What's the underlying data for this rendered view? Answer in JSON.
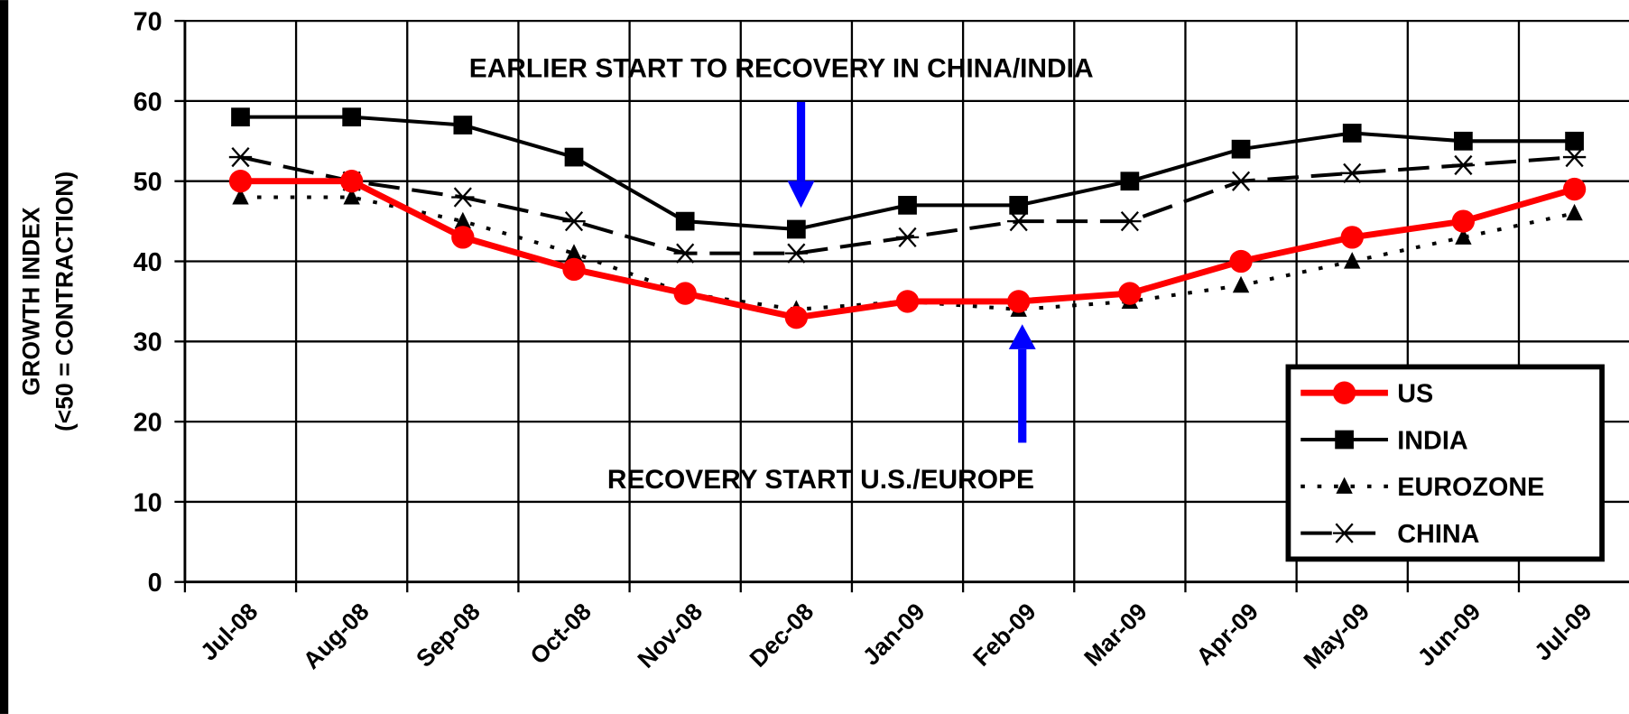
{
  "chart_data": {
    "type": "line",
    "y_label_lines": [
      "GROWTH INDEX",
      "(<50 = CONTRACTION)"
    ],
    "annotations": [
      "EARLIER START TO RECOVERY IN CHINA/INDIA",
      "RECOVERY START U.S./EUROPE"
    ],
    "categories": [
      "Jul-08",
      "Aug-08",
      "Sep-08",
      "Oct-08",
      "Nov-08",
      "Dec-08",
      "Jan-09",
      "Feb-09",
      "Mar-09",
      "Apr-09",
      "May-09",
      "Jun-09",
      "Jul-09"
    ],
    "series": [
      {
        "name": "US",
        "color": "#ff0000",
        "values": [
          50,
          50,
          43,
          39,
          36,
          33,
          35,
          35,
          36,
          40,
          43,
          45,
          49
        ]
      },
      {
        "name": "INDIA",
        "color": "#000000",
        "values": [
          58,
          58,
          57,
          53,
          45,
          44,
          47,
          47,
          50,
          54,
          56,
          55,
          55
        ]
      },
      {
        "name": "EUROZONE",
        "color": "#000000",
        "values": [
          48,
          48,
          45,
          41,
          36,
          34,
          35,
          34,
          35,
          37,
          40,
          43,
          46
        ]
      },
      {
        "name": "CHINA",
        "color": "#000000",
        "values": [
          53,
          50,
          48,
          45,
          41,
          41,
          43,
          45,
          45,
          50,
          51,
          52,
          53
        ]
      }
    ],
    "ylim": [
      0,
      70
    ],
    "yticks": [
      0,
      10,
      20,
      30,
      40,
      50,
      60,
      70
    ],
    "grid": true,
    "legend": "lower-right",
    "arrow_color": "#0000ff"
  }
}
